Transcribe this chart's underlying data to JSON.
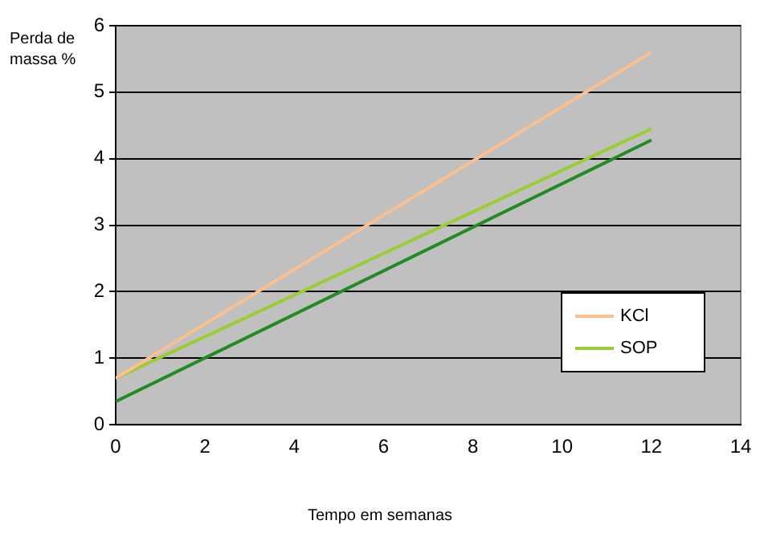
{
  "chart_data": {
    "type": "line",
    "xlabel": "Tempo em semanas",
    "ylabel": "Perda de massa %",
    "xlim": [
      0,
      14
    ],
    "xticks": [
      0,
      2,
      4,
      6,
      8,
      10,
      12,
      14
    ],
    "ylim": [
      0,
      6
    ],
    "yticks": [
      0,
      1,
      2,
      3,
      4,
      5,
      6
    ],
    "grid": "y",
    "legend": "right",
    "marker": "none",
    "line_style": "solid",
    "x": [
      0,
      12
    ],
    "series": [
      {
        "name": "KCl",
        "color": "#fac090",
        "values": [
          0.7,
          5.6
        ]
      },
      {
        "name": "SOP",
        "color": "#9acd32",
        "values": [
          0.7,
          4.45
        ]
      },
      {
        "color": "#228b22",
        "values": [
          0.35,
          4.28
        ]
      }
    ]
  }
}
